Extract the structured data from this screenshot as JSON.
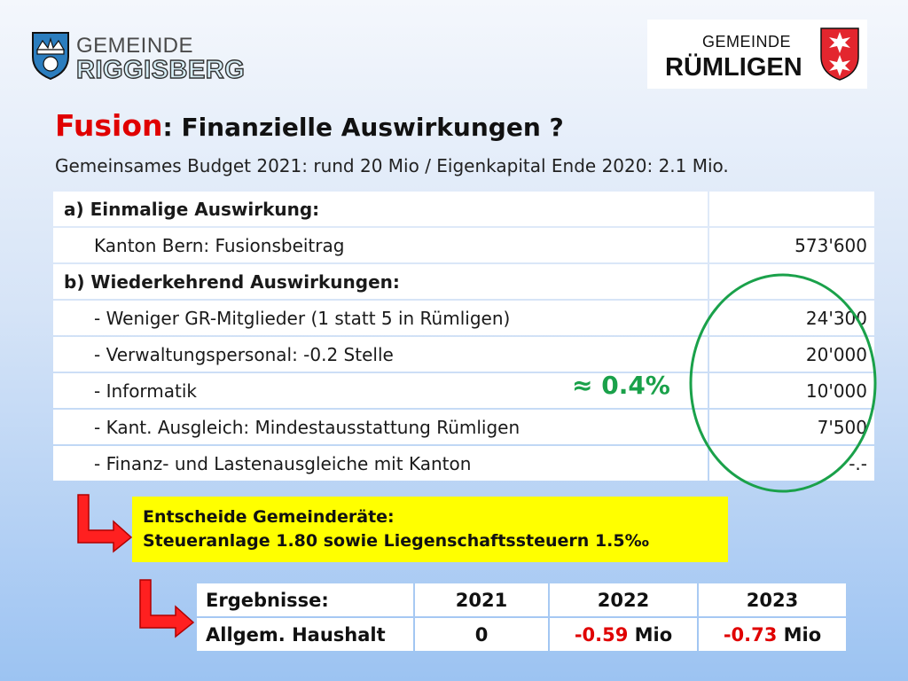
{
  "logos": {
    "left": {
      "line1": "GEMEINDE",
      "line2": "RIGGISBERG"
    },
    "right": {
      "line1": "GEMEINDE",
      "line2": "RÜMLIGEN"
    }
  },
  "title": {
    "highlight": "Fusion",
    "rest": ": Finanzielle Auswirkungen ?"
  },
  "subtitle": "Gemeinsames Budget 2021: rund 20 Mio / Eigenkapital Ende 2020: 2.1 Mio.",
  "table": {
    "rows": [
      {
        "label": "a) Einmalige Auswirkung:",
        "value": ""
      },
      {
        "label": "Kanton Bern: Fusionsbeitrag",
        "value": "573'600"
      },
      {
        "label": "b) Wiederkehrend Auswirkungen:",
        "value": ""
      },
      {
        "label": "- Weniger GR-Mitglieder (1 statt 5 in Rümligen)",
        "value": "24'300"
      },
      {
        "label": "- Verwaltungspersonal: -0.2 Stelle",
        "value": "20'000"
      },
      {
        "label": "- Informatik",
        "value": "10'000"
      },
      {
        "label": "- Kant. Ausgleich: Mindestausstattung Rümligen",
        "value": "7'500"
      },
      {
        "label": "- Finanz- und Lastenausgleiche mit Kanton",
        "value": "-.-"
      }
    ]
  },
  "annotation": "≈ 0.4%",
  "decision": {
    "line1": "Entscheide Gemeinderäte:",
    "line2": "Steueranlage 1.80 sowie Liegenschaftssteuern 1.5‰"
  },
  "results": {
    "headers": [
      "Ergebnisse:",
      "2021",
      "2022",
      "2023"
    ],
    "row": {
      "label": "Allgem. Haushalt",
      "v2021": "0",
      "v2022_num": "-0.59",
      "v2022_unit": " Mio",
      "v2023_num": "-0.73",
      "v2023_unit": " Mio"
    }
  },
  "colors": {
    "accent_red": "#e00000",
    "highlight_yellow": "#ffff00",
    "annotation_green": "#1aa14a"
  }
}
